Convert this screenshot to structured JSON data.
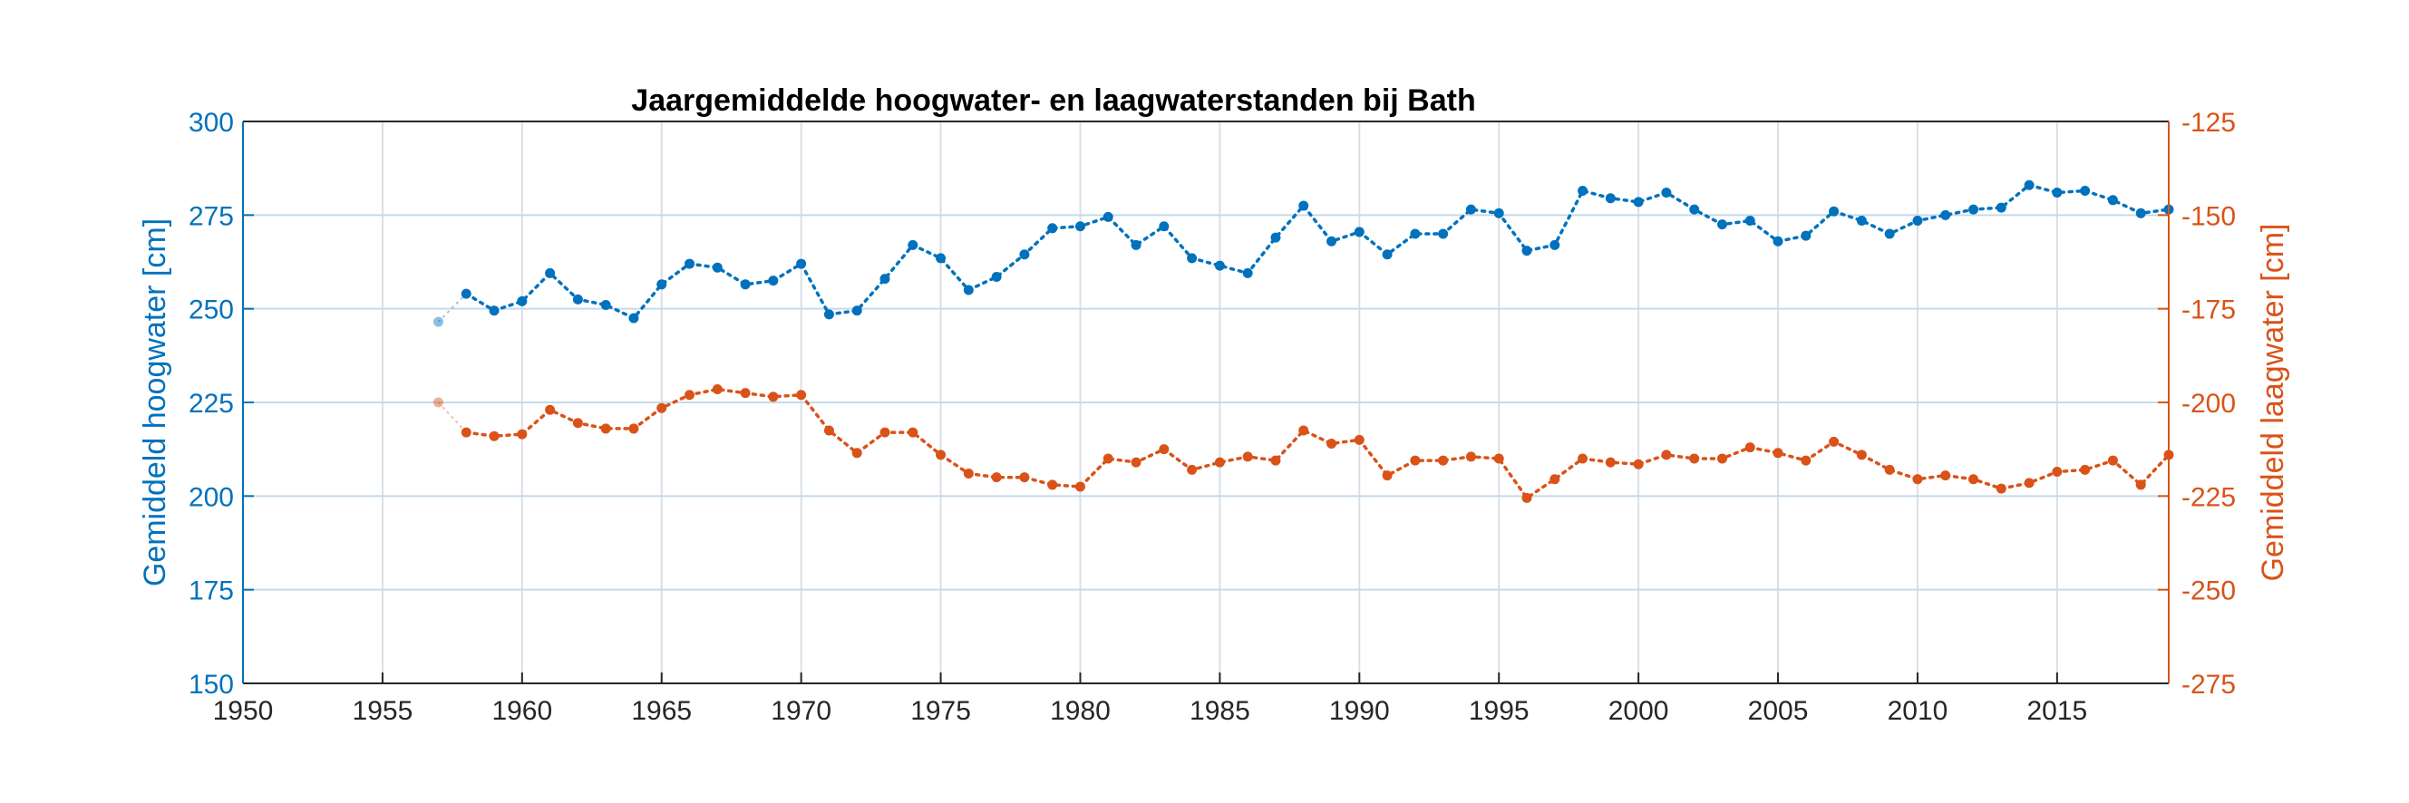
{
  "chart_data": {
    "type": "line",
    "title": "Jaargemiddelde hoogwater- en laagwaterstanden bij Bath",
    "xlabel": "",
    "xlim": [
      1950,
      2019
    ],
    "xticks": [
      "1950",
      "1955",
      "1960",
      "1965",
      "1970",
      "1975",
      "1980",
      "1985",
      "1990",
      "1995",
      "2000",
      "2005",
      "2010",
      "2015"
    ],
    "left_axis": {
      "label": "Gemiddeld hoogwater [cm]",
      "ylim": [
        150,
        300
      ],
      "ticks": [
        "150",
        "175",
        "200",
        "225",
        "250",
        "275",
        "300"
      ],
      "color": "#0072BD"
    },
    "right_axis": {
      "label": "Gemiddeld laagwater [cm]",
      "ylim": [
        -275,
        -125
      ],
      "ticks": [
        "-275",
        "-250",
        "-225",
        "-200",
        "-175",
        "-150",
        "-125"
      ],
      "color": "#D95319"
    },
    "grid": true,
    "legend": "none",
    "series": [
      {
        "axis": "left",
        "color": "#0072BD",
        "x": [
          1957,
          1958,
          1959,
          1960,
          1961,
          1962,
          1963,
          1964,
          1965,
          1966,
          1967,
          1968,
          1969,
          1970,
          1971,
          1972,
          1973,
          1974,
          1975,
          1976,
          1977,
          1978,
          1979,
          1980,
          1981,
          1982,
          1983,
          1984,
          1985,
          1986,
          1987,
          1988,
          1989,
          1990,
          1991,
          1992,
          1993,
          1994,
          1995,
          1996,
          1997,
          1998,
          1999,
          2000,
          2001,
          2002,
          2003,
          2004,
          2005,
          2006,
          2007,
          2008,
          2009,
          2010,
          2011,
          2012,
          2013,
          2014,
          2015,
          2016,
          2017,
          2018,
          2019
        ],
        "y": [
          246.5,
          254,
          249.5,
          252,
          259.5,
          252.5,
          251,
          247.5,
          256.5,
          262,
          261,
          256.5,
          257.5,
          262,
          248.5,
          249.5,
          258,
          267,
          263.5,
          255,
          258.5,
          264.5,
          271.5,
          272,
          274.5,
          267,
          272,
          263.5,
          261.5,
          259.5,
          269,
          277.5,
          268,
          270.5,
          264.5,
          270,
          270,
          276.5,
          275.5,
          265.5,
          267,
          281.5,
          279.5,
          278.5,
          281,
          276.5,
          272.5,
          273.5,
          268,
          269.5,
          276,
          273.5,
          270,
          273.5,
          275,
          276.5,
          277,
          283,
          281,
          281.5,
          279,
          275.5,
          276.5
        ]
      },
      {
        "axis": "right",
        "color": "#D95319",
        "x": [
          1957,
          1958,
          1959,
          1960,
          1961,
          1962,
          1963,
          1964,
          1965,
          1966,
          1967,
          1968,
          1969,
          1970,
          1971,
          1972,
          1973,
          1974,
          1975,
          1976,
          1977,
          1978,
          1979,
          1980,
          1981,
          1982,
          1983,
          1984,
          1985,
          1986,
          1987,
          1988,
          1989,
          1990,
          1991,
          1992,
          1993,
          1994,
          1995,
          1996,
          1997,
          1998,
          1999,
          2000,
          2001,
          2002,
          2003,
          2004,
          2005,
          2006,
          2007,
          2008,
          2009,
          2010,
          2011,
          2012,
          2013,
          2014,
          2015,
          2016,
          2017,
          2018,
          2019
        ],
        "y": [
          -200,
          -208,
          -209,
          -208.5,
          -202,
          -205.5,
          -207,
          -207,
          -201.5,
          -198,
          -196.5,
          -197.5,
          -198.5,
          -198,
          -207.5,
          -213.5,
          -208,
          -208,
          -214,
          -219,
          -220,
          -220,
          -222,
          -222.5,
          -215,
          -216,
          -212.5,
          -218,
          -216,
          -214.5,
          -215.5,
          -207.5,
          -211,
          -210,
          -219.5,
          -215.5,
          -215.5,
          -214.5,
          -215,
          -225.5,
          -220.5,
          -215,
          -216,
          -216.5,
          -214,
          -215,
          -215,
          -212,
          -213.5,
          -215.5,
          -210.5,
          -214,
          -218,
          -220.5,
          -219.5,
          -220.5,
          -223,
          -221.5,
          -218.5,
          -218,
          -215.5,
          -222,
          -214
        ]
      }
    ]
  }
}
